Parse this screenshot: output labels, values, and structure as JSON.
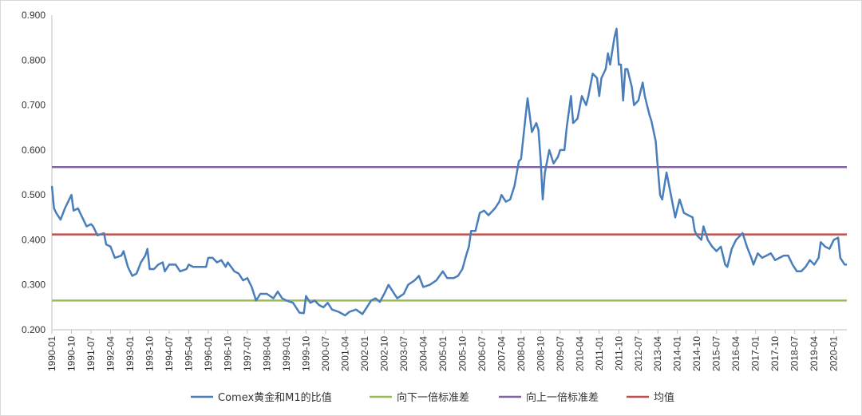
{
  "chart_data": {
    "type": "line",
    "title": "",
    "xlabel": "",
    "ylabel": "",
    "ylim": [
      0.2,
      0.9
    ],
    "y_ticks": [
      "0.200",
      "0.300",
      "0.400",
      "0.500",
      "0.600",
      "0.700",
      "0.800",
      "0.900"
    ],
    "x_tick_labels": [
      "1990-01",
      "1990-10",
      "1991-07",
      "1992-04",
      "1993-01",
      "1993-10",
      "1994-07",
      "1995-04",
      "1996-01",
      "1996-10",
      "1997-07",
      "1998-04",
      "1999-01",
      "1999-10",
      "2000-07",
      "2001-04",
      "2002-01",
      "2002-10",
      "2003-07",
      "2004-04",
      "2005-01",
      "2005-10",
      "2006-07",
      "2007-04",
      "2008-01",
      "2008-10",
      "2009-07",
      "2010-04",
      "2011-01",
      "2011-10",
      "2012-07",
      "2013-04",
      "2014-01",
      "2014-10",
      "2015-07",
      "2016-04",
      "2017-01",
      "2017-10",
      "2018-07",
      "2019-04",
      "2020-01"
    ],
    "x_range": [
      "1990-01",
      "2020-07"
    ],
    "grid": "horizontal",
    "legend_position": "bottom",
    "series": [
      {
        "name": "Comex黄金和M1的比值",
        "color": "#4a7ebb",
        "points": [
          [
            "1990-01",
            0.52
          ],
          [
            "1990-02",
            0.47
          ],
          [
            "1990-03",
            0.46
          ],
          [
            "1990-05",
            0.445
          ],
          [
            "1990-07",
            0.47
          ],
          [
            "1990-10",
            0.5
          ],
          [
            "1990-11",
            0.465
          ],
          [
            "1991-01",
            0.47
          ],
          [
            "1991-03",
            0.45
          ],
          [
            "1991-05",
            0.43
          ],
          [
            "1991-07",
            0.435
          ],
          [
            "1991-08",
            0.43
          ],
          [
            "1991-10",
            0.41
          ],
          [
            "1992-01",
            0.415
          ],
          [
            "1992-02",
            0.39
          ],
          [
            "1992-04",
            0.385
          ],
          [
            "1992-06",
            0.36
          ],
          [
            "1992-09",
            0.365
          ],
          [
            "1992-10",
            0.375
          ],
          [
            "1992-12",
            0.34
          ],
          [
            "1993-02",
            0.32
          ],
          [
            "1993-04",
            0.325
          ],
          [
            "1993-06",
            0.35
          ],
          [
            "1993-08",
            0.365
          ],
          [
            "1993-09",
            0.38
          ],
          [
            "1993-10",
            0.335
          ],
          [
            "1993-12",
            0.335
          ],
          [
            "1994-02",
            0.345
          ],
          [
            "1994-04",
            0.35
          ],
          [
            "1994-05",
            0.33
          ],
          [
            "1994-07",
            0.345
          ],
          [
            "1994-10",
            0.345
          ],
          [
            "1994-12",
            0.33
          ],
          [
            "1995-03",
            0.335
          ],
          [
            "1995-04",
            0.345
          ],
          [
            "1995-06",
            0.34
          ],
          [
            "1995-09",
            0.34
          ],
          [
            "1995-12",
            0.34
          ],
          [
            "1996-01",
            0.36
          ],
          [
            "1996-03",
            0.36
          ],
          [
            "1996-05",
            0.35
          ],
          [
            "1996-07",
            0.355
          ],
          [
            "1996-09",
            0.34
          ],
          [
            "1996-10",
            0.35
          ],
          [
            "1997-01",
            0.33
          ],
          [
            "1997-03",
            0.325
          ],
          [
            "1997-05",
            0.31
          ],
          [
            "1997-07",
            0.315
          ],
          [
            "1997-09",
            0.295
          ],
          [
            "1997-11",
            0.265
          ],
          [
            "1998-01",
            0.28
          ],
          [
            "1998-04",
            0.28
          ],
          [
            "1998-07",
            0.27
          ],
          [
            "1998-09",
            0.285
          ],
          [
            "1998-11",
            0.27
          ],
          [
            "1999-01",
            0.265
          ],
          [
            "1999-04",
            0.26
          ],
          [
            "1999-07",
            0.238
          ],
          [
            "1999-09",
            0.237
          ],
          [
            "1999-10",
            0.275
          ],
          [
            "1999-12",
            0.26
          ],
          [
            "2000-02",
            0.265
          ],
          [
            "2000-04",
            0.255
          ],
          [
            "2000-06",
            0.25
          ],
          [
            "2000-08",
            0.26
          ],
          [
            "2000-10",
            0.245
          ],
          [
            "2001-01",
            0.24
          ],
          [
            "2001-04",
            0.232
          ],
          [
            "2001-06",
            0.24
          ],
          [
            "2001-09",
            0.245
          ],
          [
            "2001-12",
            0.235
          ],
          [
            "2002-02",
            0.25
          ],
          [
            "2002-04",
            0.265
          ],
          [
            "2002-06",
            0.27
          ],
          [
            "2002-08",
            0.262
          ],
          [
            "2002-10",
            0.28
          ],
          [
            "2002-12",
            0.3
          ],
          [
            "2003-02",
            0.285
          ],
          [
            "2003-04",
            0.27
          ],
          [
            "2003-07",
            0.28
          ],
          [
            "2003-09",
            0.3
          ],
          [
            "2003-12",
            0.31
          ],
          [
            "2004-02",
            0.32
          ],
          [
            "2004-04",
            0.295
          ],
          [
            "2004-07",
            0.3
          ],
          [
            "2004-10",
            0.31
          ],
          [
            "2005-01",
            0.33
          ],
          [
            "2005-03",
            0.315
          ],
          [
            "2005-06",
            0.315
          ],
          [
            "2005-08",
            0.32
          ],
          [
            "2005-10",
            0.335
          ],
          [
            "2005-12",
            0.37
          ],
          [
            "2006-01",
            0.385
          ],
          [
            "2006-02",
            0.42
          ],
          [
            "2006-04",
            0.42
          ],
          [
            "2006-06",
            0.46
          ],
          [
            "2006-08",
            0.465
          ],
          [
            "2006-10",
            0.455
          ],
          [
            "2007-01",
            0.47
          ],
          [
            "2007-03",
            0.485
          ],
          [
            "2007-04",
            0.5
          ],
          [
            "2007-06",
            0.485
          ],
          [
            "2007-08",
            0.49
          ],
          [
            "2007-10",
            0.52
          ],
          [
            "2007-12",
            0.575
          ],
          [
            "2008-01",
            0.58
          ],
          [
            "2008-03",
            0.67
          ],
          [
            "2008-04",
            0.715
          ],
          [
            "2008-06",
            0.64
          ],
          [
            "2008-08",
            0.66
          ],
          [
            "2008-09",
            0.645
          ],
          [
            "2008-10",
            0.58
          ],
          [
            "2008-11",
            0.49
          ],
          [
            "2008-12",
            0.55
          ],
          [
            "2009-02",
            0.6
          ],
          [
            "2009-04",
            0.57
          ],
          [
            "2009-06",
            0.585
          ],
          [
            "2009-07",
            0.6
          ],
          [
            "2009-09",
            0.6
          ],
          [
            "2009-10",
            0.65
          ],
          [
            "2009-12",
            0.72
          ],
          [
            "2010-01",
            0.66
          ],
          [
            "2010-03",
            0.67
          ],
          [
            "2010-05",
            0.72
          ],
          [
            "2010-07",
            0.7
          ],
          [
            "2010-08",
            0.72
          ],
          [
            "2010-10",
            0.77
          ],
          [
            "2010-12",
            0.76
          ],
          [
            "2011-01",
            0.72
          ],
          [
            "2011-02",
            0.76
          ],
          [
            "2011-04",
            0.78
          ],
          [
            "2011-05",
            0.815
          ],
          [
            "2011-06",
            0.79
          ],
          [
            "2011-08",
            0.85
          ],
          [
            "2011-09",
            0.87
          ],
          [
            "2011-10",
            0.79
          ],
          [
            "2011-11",
            0.79
          ],
          [
            "2011-12",
            0.71
          ],
          [
            "2012-01",
            0.78
          ],
          [
            "2012-02",
            0.78
          ],
          [
            "2012-04",
            0.74
          ],
          [
            "2012-05",
            0.7
          ],
          [
            "2012-07",
            0.71
          ],
          [
            "2012-09",
            0.75
          ],
          [
            "2012-10",
            0.72
          ],
          [
            "2012-12",
            0.68
          ],
          [
            "2013-01",
            0.665
          ],
          [
            "2013-03",
            0.62
          ],
          [
            "2013-04",
            0.56
          ],
          [
            "2013-05",
            0.5
          ],
          [
            "2013-06",
            0.49
          ],
          [
            "2013-08",
            0.55
          ],
          [
            "2013-10",
            0.5
          ],
          [
            "2013-12",
            0.45
          ],
          [
            "2014-02",
            0.49
          ],
          [
            "2014-04",
            0.46
          ],
          [
            "2014-06",
            0.455
          ],
          [
            "2014-08",
            0.45
          ],
          [
            "2014-09",
            0.42
          ],
          [
            "2014-10",
            0.41
          ],
          [
            "2014-12",
            0.4
          ],
          [
            "2015-01",
            0.43
          ],
          [
            "2015-03",
            0.4
          ],
          [
            "2015-05",
            0.385
          ],
          [
            "2015-07",
            0.375
          ],
          [
            "2015-09",
            0.385
          ],
          [
            "2015-11",
            0.345
          ],
          [
            "2015-12",
            0.34
          ],
          [
            "2016-02",
            0.38
          ],
          [
            "2016-04",
            0.4
          ],
          [
            "2016-06",
            0.41
          ],
          [
            "2016-07",
            0.415
          ],
          [
            "2016-09",
            0.385
          ],
          [
            "2016-11",
            0.36
          ],
          [
            "2016-12",
            0.345
          ],
          [
            "2017-02",
            0.37
          ],
          [
            "2017-04",
            0.36
          ],
          [
            "2017-06",
            0.365
          ],
          [
            "2017-08",
            0.37
          ],
          [
            "2017-10",
            0.355
          ],
          [
            "2017-12",
            0.36
          ],
          [
            "2018-02",
            0.365
          ],
          [
            "2018-04",
            0.365
          ],
          [
            "2018-06",
            0.345
          ],
          [
            "2018-08",
            0.33
          ],
          [
            "2018-10",
            0.33
          ],
          [
            "2018-12",
            0.34
          ],
          [
            "2019-02",
            0.355
          ],
          [
            "2019-04",
            0.345
          ],
          [
            "2019-06",
            0.36
          ],
          [
            "2019-07",
            0.395
          ],
          [
            "2019-09",
            0.385
          ],
          [
            "2019-11",
            0.38
          ],
          [
            "2020-01",
            0.4
          ],
          [
            "2020-03",
            0.405
          ],
          [
            "2020-04",
            0.36
          ],
          [
            "2020-06",
            0.345
          ],
          [
            "2020-07",
            0.345
          ]
        ]
      },
      {
        "name": "向下一倍标准差",
        "color": "#9bbb59",
        "constant": 0.265
      },
      {
        "name": "向上一倍标准差",
        "color": "#8064a2",
        "constant": 0.562
      },
      {
        "name": "均值",
        "color": "#c0504d",
        "constant": 0.412
      }
    ]
  }
}
